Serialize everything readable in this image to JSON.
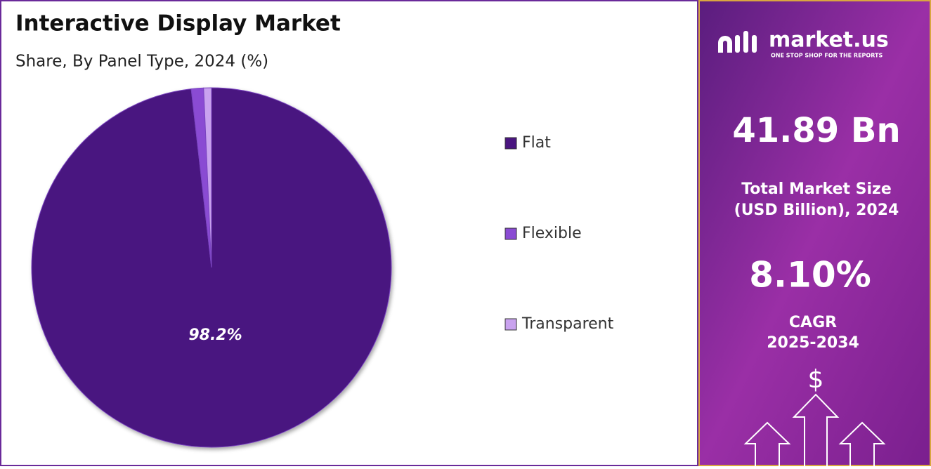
{
  "chart_data": {
    "type": "pie",
    "title": "Interactive Display Market",
    "subtitle": "Share, By Panel Type, 2024 (%)",
    "categories": [
      "Flat",
      "Flexible",
      "Transparent"
    ],
    "values": [
      98.2,
      1.1,
      0.7
    ],
    "value_labels": [
      "98.2%",
      null,
      null
    ],
    "colors": [
      "#4a1580",
      "#8a4bd3",
      "#c9a2ef"
    ],
    "legend": "right"
  },
  "panel": {
    "brand": "market.us",
    "tagline": "ONE STOP SHOP FOR THE REPORTS",
    "market_size": "41.89 Bn",
    "market_size_label_1": "Total Market Size",
    "market_size_label_2": "(USD Billion), 2024",
    "cagr": "8.10%",
    "cagr_label_1": "CAGR",
    "cagr_label_2": "2025-2034",
    "currency": "$"
  }
}
